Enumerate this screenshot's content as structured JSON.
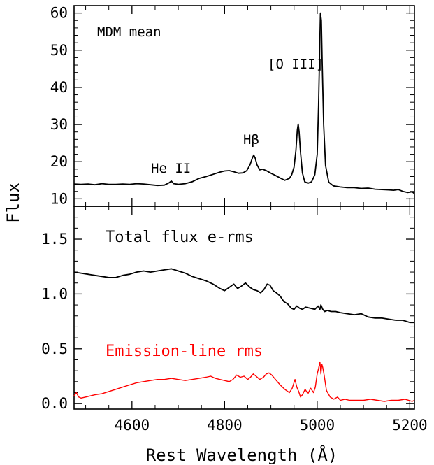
{
  "chart_data": [
    {
      "type": "line",
      "panel": "top",
      "ylabel": "Flux",
      "xlim": [
        4475,
        5210
      ],
      "ylim": [
        8,
        62
      ],
      "yticks": [
        10,
        20,
        30,
        40,
        50,
        60
      ],
      "xticks": [
        4600,
        4800,
        5000,
        5200
      ],
      "title": "MDM mean",
      "annotations": [
        {
          "text": "He II",
          "x": 4655,
          "y": 21.5
        },
        {
          "text": "Hβ",
          "x": 4862,
          "y": 24.2
        },
        {
          "text": "[O III]",
          "x": 4958,
          "y": 42.0
        }
      ],
      "series": [
        {
          "color": "#000000",
          "x": [
            4475,
            4490,
            4505,
            4520,
            4535,
            4550,
            4565,
            4580,
            4595,
            4610,
            4625,
            4640,
            4655,
            4670,
            4680,
            4685,
            4690,
            4700,
            4715,
            4730,
            4745,
            4760,
            4775,
            4790,
            4800,
            4810,
            4820,
            4830,
            4840,
            4848,
            4855,
            4860,
            4863,
            4866,
            4870,
            4876,
            4882,
            4890,
            4900,
            4910,
            4920,
            4930,
            4940,
            4945,
            4950,
            4954,
            4957,
            4959,
            4961,
            4964,
            4968,
            4973,
            4980,
            4988,
            4995,
            5000,
            5003,
            5005,
            5007,
            5009,
            5011,
            5014,
            5018,
            5025,
            5035,
            5050,
            5065,
            5080,
            5095,
            5110,
            5125,
            5140,
            5155,
            5165,
            5175,
            5185,
            5195,
            5205,
            5210
          ],
          "values": [
            14.0,
            13.9,
            14.0,
            13.8,
            14.1,
            13.9,
            13.9,
            14.0,
            13.9,
            14.1,
            14.0,
            13.8,
            13.6,
            13.7,
            14.3,
            14.8,
            14.1,
            13.9,
            14.1,
            14.6,
            15.5,
            16.0,
            16.6,
            17.2,
            17.5,
            17.6,
            17.3,
            16.9,
            17.0,
            17.6,
            19.2,
            21.0,
            21.8,
            21.0,
            19.2,
            17.8,
            18.0,
            17.6,
            16.9,
            16.3,
            15.6,
            15.0,
            15.5,
            16.5,
            18.5,
            23.0,
            28.5,
            30.1,
            28.0,
            22.5,
            17.0,
            14.6,
            14.2,
            14.6,
            16.5,
            22.0,
            35.0,
            48.0,
            60.0,
            58.0,
            46.0,
            30.0,
            19.0,
            14.5,
            13.5,
            13.2,
            13.0,
            13.0,
            12.8,
            12.9,
            12.6,
            12.5,
            12.4,
            12.3,
            12.5,
            12.0,
            11.7,
            11.9,
            11.4
          ]
        }
      ]
    },
    {
      "type": "line",
      "panel": "bottom",
      "xlabel": "Rest Wavelength (Å)",
      "xlim": [
        4475,
        5210
      ],
      "ylim": [
        -0.05,
        1.8
      ],
      "yticks": [
        0.0,
        0.5,
        1.0,
        1.5
      ],
      "ytick_labels": [
        "0.0",
        "0.5",
        "1.0",
        "1.5"
      ],
      "xticks": [
        4600,
        4800,
        5000,
        5200
      ],
      "series": [
        {
          "name": "Total flux e-rms",
          "color": "#000000",
          "x": [
            4475,
            4490,
            4505,
            4520,
            4535,
            4550,
            4565,
            4580,
            4595,
            4610,
            4625,
            4640,
            4655,
            4670,
            4685,
            4700,
            4715,
            4730,
            4745,
            4760,
            4775,
            4790,
            4800,
            4810,
            4820,
            4828,
            4836,
            4845,
            4855,
            4862,
            4870,
            4878,
            4885,
            4892,
            4898,
            4905,
            4912,
            4920,
            4928,
            4936,
            4944,
            4950,
            4956,
            4962,
            4968,
            4975,
            4985,
            4995,
            5002,
            5006,
            5008,
            5010,
            5012,
            5016,
            5022,
            5030,
            5040,
            5050,
            5065,
            5080,
            5095,
            5110,
            5125,
            5140,
            5155,
            5170,
            5185,
            5200,
            5210
          ],
          "values": [
            1.2,
            1.19,
            1.18,
            1.17,
            1.16,
            1.15,
            1.15,
            1.17,
            1.18,
            1.2,
            1.21,
            1.2,
            1.21,
            1.22,
            1.23,
            1.21,
            1.19,
            1.16,
            1.14,
            1.12,
            1.09,
            1.05,
            1.03,
            1.06,
            1.09,
            1.05,
            1.07,
            1.1,
            1.06,
            1.04,
            1.03,
            1.01,
            1.04,
            1.09,
            1.08,
            1.03,
            1.01,
            0.98,
            0.93,
            0.91,
            0.87,
            0.86,
            0.89,
            0.87,
            0.86,
            0.88,
            0.87,
            0.86,
            0.89,
            0.86,
            0.9,
            0.88,
            0.86,
            0.84,
            0.85,
            0.84,
            0.84,
            0.83,
            0.82,
            0.81,
            0.82,
            0.79,
            0.78,
            0.78,
            0.77,
            0.76,
            0.76,
            0.74,
            0.74
          ]
        },
        {
          "name": "Emission-line rms",
          "color": "#ff0000",
          "x": [
            4475,
            4480,
            4485,
            4490,
            4500,
            4510,
            4520,
            4535,
            4550,
            4565,
            4580,
            4595,
            4610,
            4625,
            4640,
            4655,
            4670,
            4685,
            4700,
            4715,
            4730,
            4745,
            4760,
            4770,
            4780,
            4790,
            4800,
            4810,
            4818,
            4826,
            4834,
            4842,
            4850,
            4856,
            4862,
            4868,
            4876,
            4884,
            4890,
            4896,
            4902,
            4910,
            4920,
            4930,
            4940,
            4946,
            4952,
            4956,
            4960,
            4964,
            4968,
            4974,
            4980,
            4986,
            4992,
            4996,
            5000,
            5003,
            5006,
            5008,
            5010,
            5012,
            5015,
            5020,
            5028,
            5036,
            5044,
            5050,
            5060,
            5070,
            5085,
            5100,
            5115,
            5130,
            5145,
            5160,
            5175,
            5190,
            5205,
            5210
          ],
          "values": [
            0.07,
            0.1,
            0.06,
            0.05,
            0.06,
            0.07,
            0.08,
            0.09,
            0.11,
            0.13,
            0.15,
            0.17,
            0.19,
            0.2,
            0.21,
            0.22,
            0.22,
            0.23,
            0.22,
            0.21,
            0.22,
            0.23,
            0.24,
            0.25,
            0.23,
            0.22,
            0.21,
            0.2,
            0.22,
            0.26,
            0.24,
            0.25,
            0.22,
            0.24,
            0.27,
            0.25,
            0.22,
            0.24,
            0.27,
            0.28,
            0.26,
            0.22,
            0.17,
            0.13,
            0.1,
            0.14,
            0.22,
            0.15,
            0.11,
            0.06,
            0.08,
            0.13,
            0.09,
            0.14,
            0.1,
            0.15,
            0.27,
            0.32,
            0.38,
            0.27,
            0.36,
            0.33,
            0.26,
            0.12,
            0.06,
            0.04,
            0.06,
            0.03,
            0.04,
            0.03,
            0.03,
            0.03,
            0.04,
            0.03,
            0.02,
            0.03,
            0.03,
            0.04,
            0.02,
            0.03
          ]
        }
      ]
    }
  ]
}
